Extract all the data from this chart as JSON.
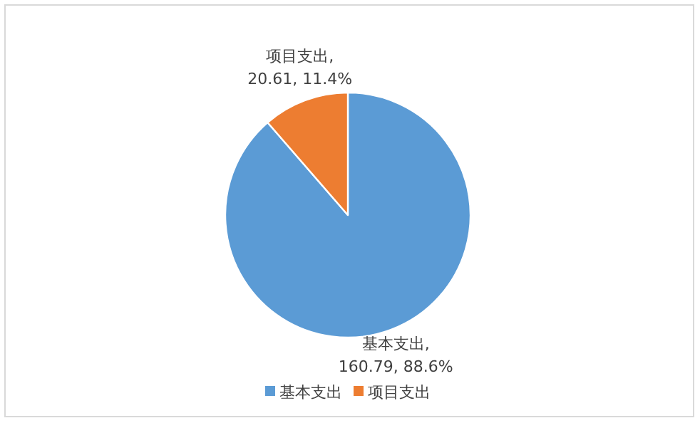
{
  "chart_data": {
    "type": "pie",
    "categories": [
      "基本支出",
      "项目支出"
    ],
    "values": [
      160.79,
      20.61
    ],
    "colors": [
      "#5b9bd5",
      "#ed7d31"
    ],
    "value_labels": [
      "基本支出,\n160.79, 88.6%",
      "项目支出,\n20.61, 11.4%"
    ],
    "legend": "bottom"
  }
}
